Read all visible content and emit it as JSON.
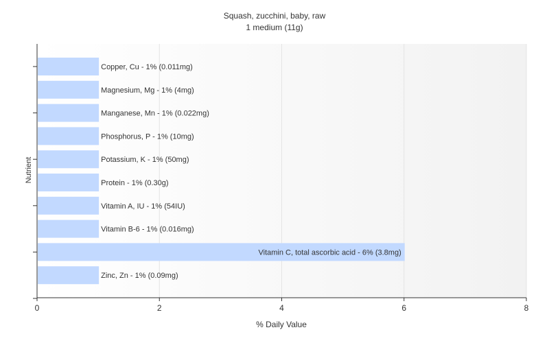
{
  "chart_data": {
    "type": "bar",
    "orientation": "horizontal",
    "title": "Squash, zucchini, baby, raw",
    "subtitle": "1 medium (11g)",
    "xlabel": "% Daily Value",
    "ylabel": "Nutrient",
    "xlim": [
      0,
      8
    ],
    "xticks": [
      0,
      2,
      4,
      6,
      8
    ],
    "grid": true,
    "bar_color": "#c2d9ff",
    "categories": [
      "Copper, Cu",
      "Magnesium, Mg",
      "Manganese, Mn",
      "Phosphorus, P",
      "Potassium, K",
      "Protein",
      "Vitamin A, IU",
      "Vitamin B-6",
      "Vitamin C, total ascorbic acid",
      "Zinc, Zn"
    ],
    "values": [
      1,
      1,
      1,
      1,
      1,
      1,
      1,
      1,
      6,
      1
    ],
    "labels": [
      "Copper, Cu - 1% (0.011mg)",
      "Magnesium, Mg - 1% (4mg)",
      "Manganese, Mn - 1% (0.022mg)",
      "Phosphorus, P - 1% (10mg)",
      "Potassium, K - 1% (50mg)",
      "Protein - 1% (0.30g)",
      "Vitamin A, IU - 1% (54IU)",
      "Vitamin B-6 - 1% (0.016mg)",
      "Vitamin C, total ascorbic acid - 6% (3.8mg)",
      "Zinc, Zn - 1% (0.09mg)"
    ]
  }
}
